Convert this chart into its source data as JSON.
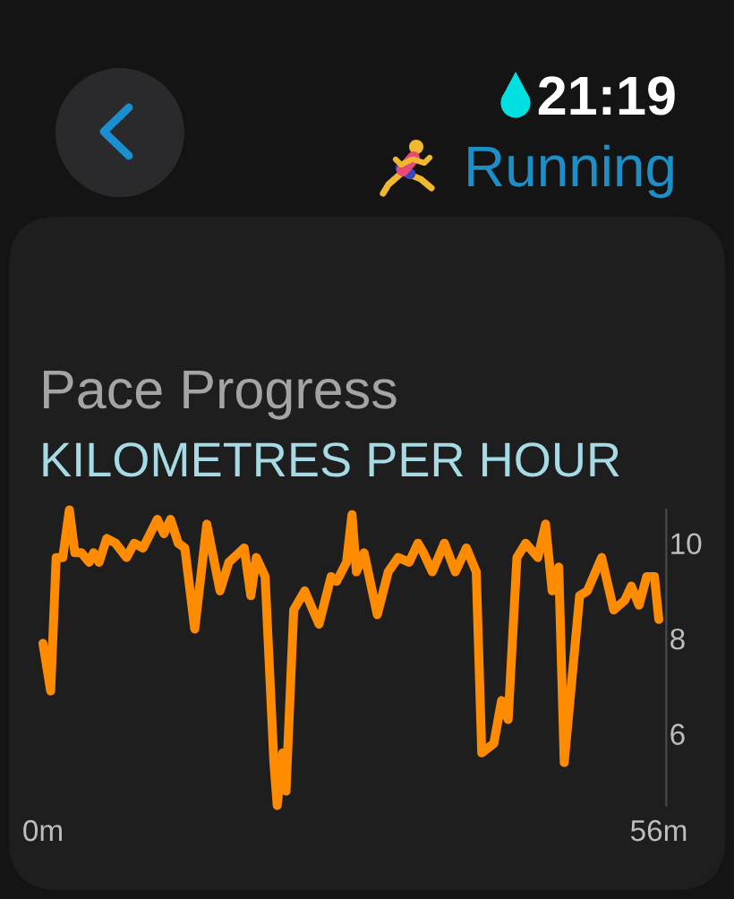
{
  "chart_data": {
    "type": "line",
    "title": "Pace Progress",
    "subtitle": "KILOMETRES PER HOUR",
    "annotations": [
      "21:19",
      "Running"
    ],
    "x": [
      0,
      0.7,
      1.2,
      1.8,
      2.4,
      2.9,
      3.5,
      4.2,
      4.6,
      5.1,
      5.8,
      6.6,
      7.6,
      8.3,
      9.1,
      10.4,
      11.0,
      11.6,
      12.3,
      12.9,
      13.8,
      14.9,
      16.1,
      16.9,
      18.3,
      18.9,
      19.4,
      20.2,
      21.0,
      21.3,
      21.8,
      22.1,
      22.8,
      23.8,
      25.1,
      26.2,
      26.7,
      27.6,
      28.1,
      28.5,
      29.2,
      30.4,
      31.4,
      32.3,
      33.3,
      34.1,
      34.6,
      35.4,
      36.5,
      37.5,
      38.5,
      39.4,
      39.9,
      41.0,
      41.7,
      42.3,
      43.1,
      43.9,
      45.0,
      45.7,
      46.3,
      46.9,
      47.4,
      48.8,
      49.5,
      50.8,
      51.9,
      52.9,
      53.5,
      54.2,
      54.9,
      55.6,
      56.0
    ],
    "series": [
      {
        "color": "#ff8c00",
        "values": [
          7.9,
          6.9,
          9.7,
          9.7,
          10.7,
          9.8,
          9.8,
          9.6,
          9.8,
          9.6,
          10.1,
          10.0,
          9.7,
          10.0,
          9.9,
          10.5,
          10.2,
          10.5,
          10.0,
          9.9,
          8.2,
          10.4,
          9.0,
          9.6,
          9.9,
          8.9,
          9.7,
          9.3,
          5.4,
          4.5,
          5.6,
          4.8,
          8.6,
          9.0,
          8.3,
          9.3,
          9.2,
          9.6,
          10.6,
          9.4,
          9.8,
          8.5,
          9.4,
          9.7,
          9.6,
          10.0,
          9.8,
          9.4,
          10.0,
          9.4,
          9.9,
          9.4,
          5.6,
          5.8,
          6.7,
          6.3,
          9.7,
          10.0,
          9.7,
          10.4,
          9.0,
          9.5,
          5.4,
          8.9,
          9.0,
          9.7,
          8.6,
          8.8,
          9.1,
          8.7,
          9.3,
          9.3,
          8.4
        ]
      }
    ],
    "xlim": [
      0,
      56
    ],
    "xticks": [
      {
        "value": 0,
        "label": "0m"
      },
      {
        "value": 56,
        "label": "56m"
      }
    ],
    "ylim": [
      4.5,
      10.7
    ],
    "yticks": [
      6,
      8,
      10
    ],
    "grid": false,
    "line_style": "solid"
  }
}
